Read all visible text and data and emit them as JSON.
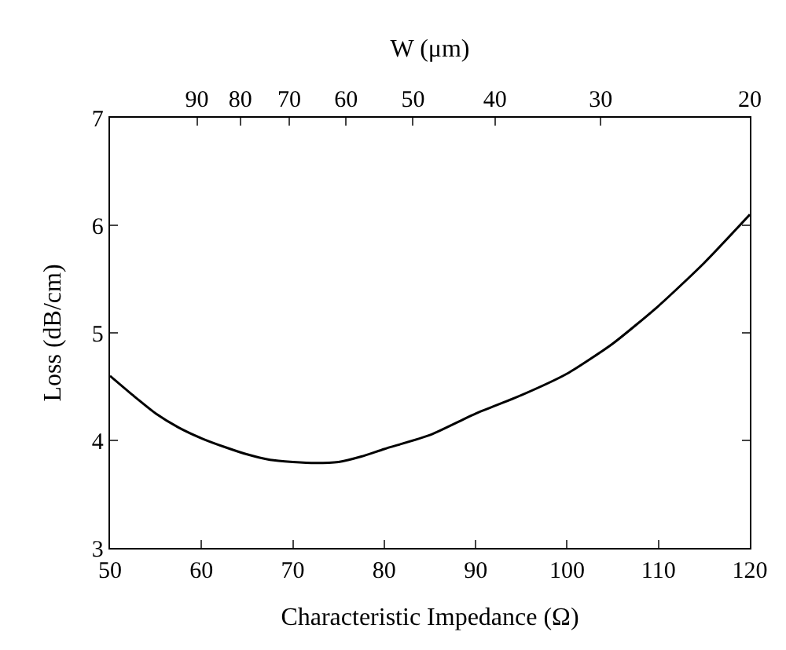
{
  "chart_data": {
    "type": "line",
    "xlabel": "Characteristic Impedance (Ω)",
    "ylabel": "Loss (dB/cm)",
    "x2label": "W (μm)",
    "x": [
      50,
      52.5,
      55,
      57.5,
      60,
      62.5,
      65,
      67.5,
      70,
      72.5,
      75,
      77.5,
      80,
      85,
      90,
      95,
      100,
      105,
      110,
      115,
      120
    ],
    "series": [
      {
        "color": "#000000",
        "values": [
          4.6,
          4.42,
          4.25,
          4.12,
          4.02,
          3.94,
          3.87,
          3.82,
          3.8,
          3.79,
          3.8,
          3.85,
          3.92,
          4.05,
          4.25,
          4.42,
          4.62,
          4.9,
          5.25,
          5.65,
          6.1
        ]
      }
    ],
    "xlim": [
      50,
      120
    ],
    "xticks": [
      50,
      60,
      70,
      80,
      90,
      100,
      110,
      120
    ],
    "ylim": [
      3,
      7
    ],
    "yticks": [
      3,
      4,
      5,
      6,
      7
    ],
    "x2lim": [
      114,
      20
    ],
    "log": "x2",
    "x2ticks": [
      90,
      80,
      70,
      60,
      50,
      40,
      30,
      20
    ],
    "marker": "none",
    "line_style": "solid"
  }
}
